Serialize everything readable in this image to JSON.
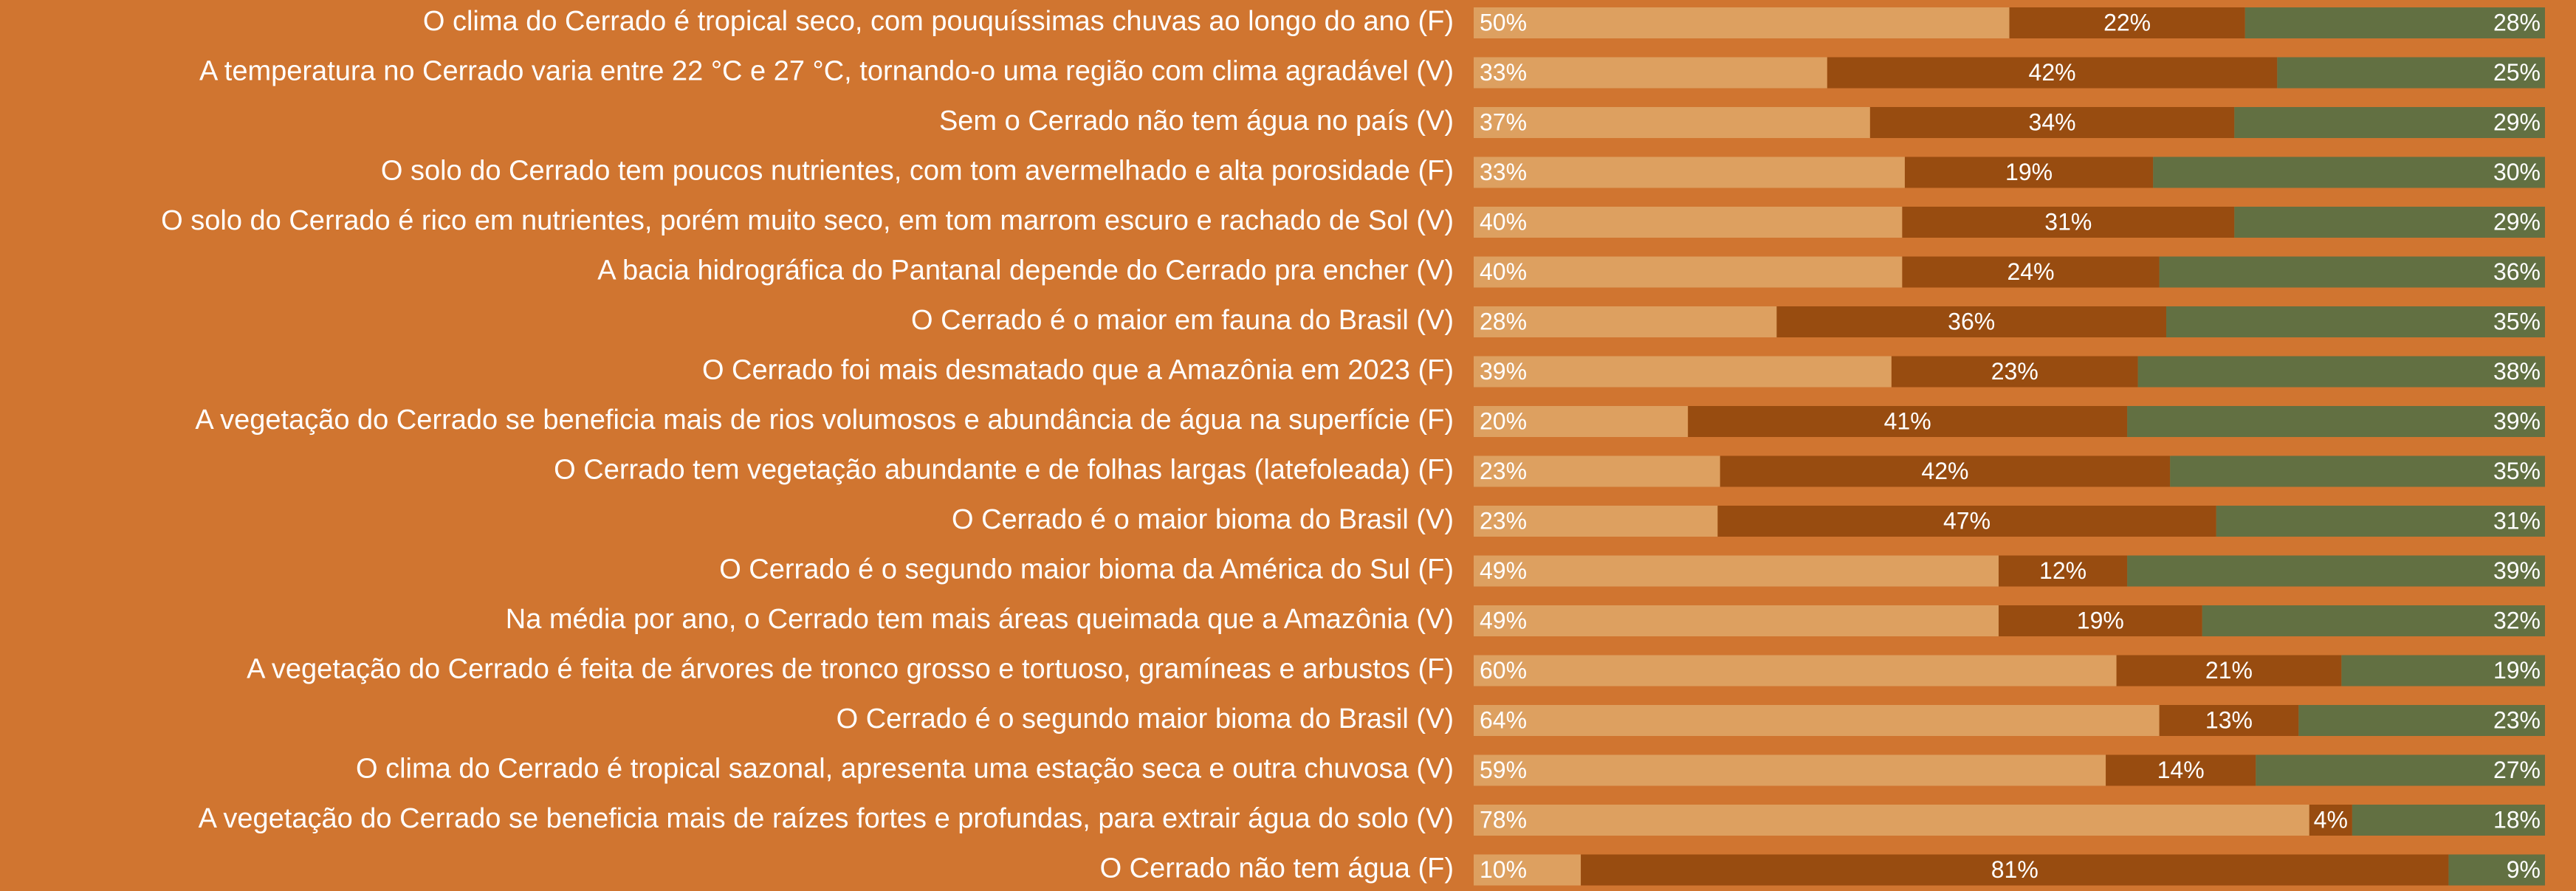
{
  "chart_data": {
    "type": "stacked_bar_horizontal",
    "categories": [
      "O clima do Cerrado é tropical seco, com pouquíssimas chuvas ao longo do ano  (F)",
      "A temperatura no Cerrado varia entre 22 °C e 27 °C, tornando-o uma região com clima agradável (V)",
      "Sem o Cerrado não tem água no país (V)",
      "O solo do Cerrado tem poucos nutrientes, com tom avermelhado e alta porosidade  (F)",
      "O solo do Cerrado é rico em nutrientes, porém muito seco, em tom marrom escuro e rachado de Sol (V)",
      "A bacia hidrográfica do Pantanal depende do Cerrado pra encher (V)",
      "O Cerrado é o maior em fauna do Brasil (V)",
      "O Cerrado foi mais desmatado que a Amazônia em 2023 (F)",
      "A vegetação do Cerrado se beneficia mais de rios volumosos e abundância de água na superfície  (F)",
      "O Cerrado tem vegetação abundante e de folhas largas (latefoleada)  (F)",
      "O Cerrado é o maior bioma do Brasil (V)",
      "O Cerrado é o segundo maior bioma da América do Sul  (F)",
      "Na média por ano, o Cerrado tem mais áreas queimada que a Amazônia (V)",
      "A vegetação do Cerrado é feita de árvores de tronco grosso e tortuoso, gramíneas e arbustos (F)",
      "O Cerrado é o segundo maior bioma do Brasil (V)",
      "O clima do Cerrado é tropical sazonal, apresenta uma estação seca e outra chuvosa (V)",
      "A vegetação do Cerrado se beneficia mais de raízes fortes e profundas, para extrair água do solo (V)",
      "O Cerrado não tem água (F)"
    ],
    "series": [
      {
        "color": "#dda060",
        "values": [
          50,
          33,
          37,
          33,
          40,
          40,
          28,
          39,
          20,
          23,
          23,
          49,
          49,
          60,
          64,
          59,
          78,
          10
        ],
        "value_labels": [
          "50%",
          "33%",
          "37%",
          "33%",
          "40%",
          "40%",
          "28%",
          "39%",
          "20%",
          "23%",
          "23%",
          "49%",
          "49%",
          "60%",
          "64%",
          "59%",
          "78%",
          "10%"
        ]
      },
      {
        "color": "#984c10",
        "values": [
          22,
          42,
          34,
          19,
          31,
          24,
          36,
          23,
          41,
          42,
          47,
          12,
          19,
          21,
          13,
          14,
          4,
          81
        ],
        "value_labels": [
          "22%",
          "42%",
          "34%",
          "19%",
          "31%",
          "24%",
          "36%",
          "23%",
          "41%",
          "42%",
          "47%",
          "12%",
          "19%",
          "21%",
          "13%",
          "14%",
          "4%",
          "81%"
        ]
      },
      {
        "color": "#627042",
        "values": [
          28,
          25,
          29,
          30,
          29,
          36,
          35,
          38,
          39,
          35,
          31,
          39,
          32,
          19,
          23,
          27,
          18,
          9
        ],
        "value_labels": [
          "28%",
          "25%",
          "29%",
          "30%",
          "29%",
          "36%",
          "35%",
          "38%",
          "39%",
          "35%",
          "31%",
          "39%",
          "32%",
          "19%",
          "23%",
          "27%",
          "18%",
          "9%"
        ]
      }
    ]
  }
}
